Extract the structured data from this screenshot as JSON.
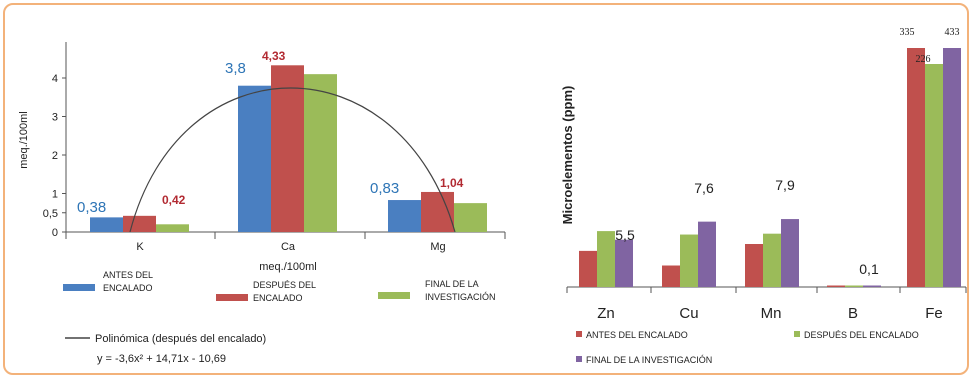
{
  "colors": {
    "antes": "#4a7fc1",
    "despues": "#c0504d",
    "final": "#9bbb59",
    "final_right": "#8064a2",
    "frame": "#f3b27a",
    "label_blue": "#2e75b6",
    "label_red": "#b22a32"
  },
  "chart_data": [
    {
      "type": "bar",
      "ylabel": "meq./100ml",
      "xlabel": "meq./100ml",
      "categories": [
        "K",
        "Ca",
        "Mg"
      ],
      "y_ticks": [
        "0",
        "0,5",
        "1",
        "2",
        "3",
        "4"
      ],
      "ylim": [
        0,
        4.6
      ],
      "series": [
        {
          "name": "ANTES DEL ENCALADO",
          "legend": [
            "ANTES DEL",
            "ENCALADO"
          ],
          "values": [
            0.38,
            3.8,
            0.83
          ]
        },
        {
          "name": "DESPUÉS DEL ENCALADO",
          "legend": [
            "DESPUÉS DEL",
            "ENCALADO"
          ],
          "values": [
            0.42,
            4.33,
            1.04
          ]
        },
        {
          "name": "FINAL DE LA INVESTIGACIÓN",
          "legend": [
            "FINAL DE LA",
            "INVESTIGACIÓN"
          ],
          "values": [
            0.2,
            4.1,
            0.75
          ]
        }
      ],
      "data_labels": [
        {
          "category": "K",
          "text": "0,38",
          "series": "ANTES DEL ENCALADO"
        },
        {
          "category": "K",
          "text": "0,42",
          "series": "DESPUÉS DEL ENCALADO"
        },
        {
          "category": "Ca",
          "text": "3,8",
          "series": "ANTES DEL ENCALADO"
        },
        {
          "category": "Ca",
          "text": "4,33",
          "series": "DESPUÉS DEL ENCALADO"
        },
        {
          "category": "Mg",
          "text": "0,83",
          "series": "ANTES DEL ENCALADO"
        },
        {
          "category": "Mg",
          "text": "1,04",
          "series": "DESPUÉS DEL ENCALADO"
        }
      ],
      "trendline": {
        "label": "Polinómica (después del encalado)",
        "equation": "y = -3,6x² + 14,71x - 10,69",
        "coefficients": [
          -3.6,
          14.71,
          -10.69
        ]
      }
    },
    {
      "type": "bar",
      "ylabel": "Microelementos  (ppm)",
      "categories": [
        "Zn",
        "Cu",
        "Mn",
        "B",
        "Fe"
      ],
      "series": [
        {
          "name": "ANTES DEL ENCALADO",
          "values": [
            4.2,
            2.5,
            5.0,
            0.1,
            335
          ]
        },
        {
          "name": "DESPUÉS DEL ENCALADO",
          "values": [
            6.5,
            6.1,
            6.2,
            0.1,
            226
          ]
        },
        {
          "name": "FINAL DE LA INVESTIGACIÓN",
          "values": [
            5.5,
            7.6,
            7.9,
            0.1,
            433
          ]
        }
      ],
      "data_labels": [
        {
          "category": "Zn",
          "text": "5,5"
        },
        {
          "category": "Cu",
          "text": "7,6"
        },
        {
          "category": "Mn",
          "text": "7,9"
        },
        {
          "category": "B",
          "text": "0,1"
        },
        {
          "category": "Fe",
          "text": "335"
        },
        {
          "category": "Fe",
          "text": "226"
        },
        {
          "category": "Fe",
          "text": "433"
        }
      ]
    }
  ]
}
